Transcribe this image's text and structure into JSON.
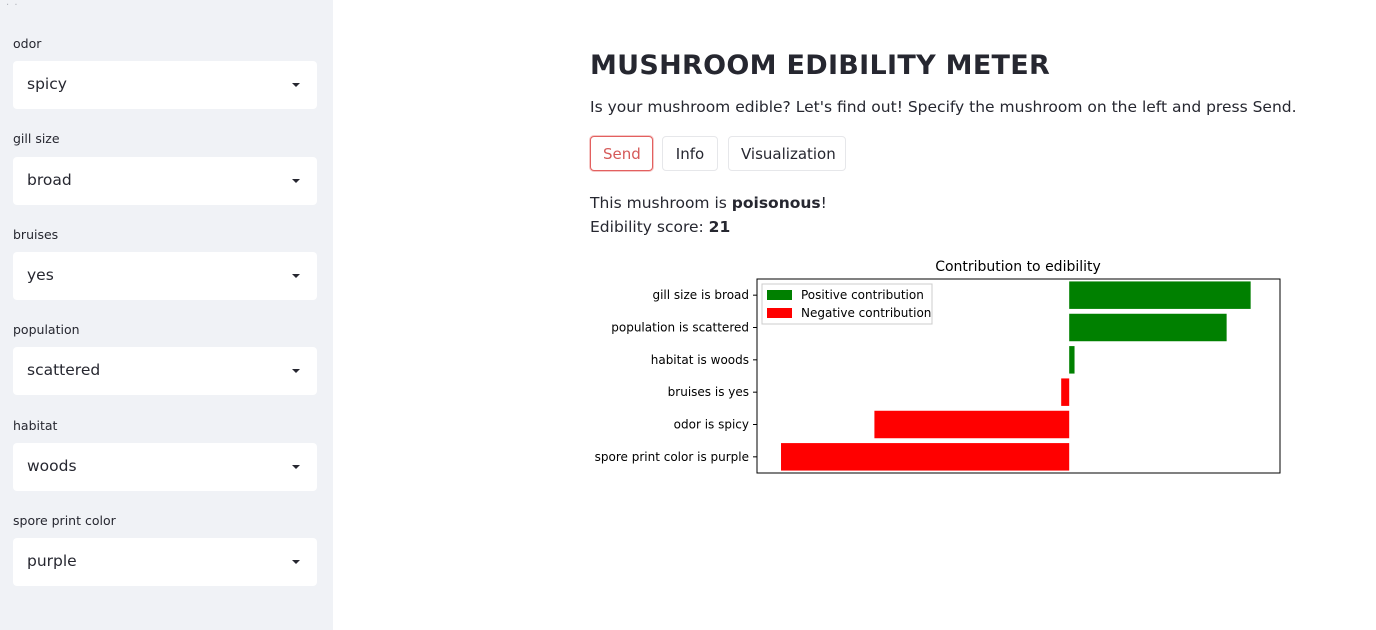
{
  "sidebar": {
    "fields": [
      {
        "label": "odor",
        "value": "spicy"
      },
      {
        "label": "gill size",
        "value": "broad"
      },
      {
        "label": "bruises",
        "value": "yes"
      },
      {
        "label": "population",
        "value": "scattered"
      },
      {
        "label": "habitat",
        "value": "woods"
      },
      {
        "label": "spore print color",
        "value": "purple"
      }
    ]
  },
  "main": {
    "title": "MUSHROOM EDIBILITY METER",
    "subtitle": "Is your mushroom edible? Let's find out! Specify the mushroom on the left and press Send.",
    "buttons": {
      "send": "Send",
      "info": "Info",
      "visualization": "Visualization"
    },
    "result": {
      "prefix": "This mushroom is ",
      "verdict": "poisonous",
      "suffix": "!",
      "score_label": "Edibility score: ",
      "score": "21"
    }
  },
  "chart_data": {
    "type": "bar",
    "orientation": "horizontal",
    "title": "Contribution to edibility",
    "categories": [
      "gill size is broad",
      "population is scattered",
      "habitat is woods",
      "bruises is yes",
      "odor is spicy",
      "spore print color is purple"
    ],
    "values": [
      0.68,
      0.59,
      0.02,
      -0.03,
      -0.73,
      -1.08
    ],
    "xlim": [
      -1.17,
      0.79
    ],
    "legend": {
      "placement": "top-left",
      "entries": [
        {
          "label": "Positive contribution",
          "color": "#008000"
        },
        {
          "label": "Negative contribution",
          "color": "#ff0000"
        }
      ]
    },
    "colors": {
      "positive": "#008000",
      "negative": "#ff0000"
    },
    "xlabel": "",
    "ylabel": "",
    "show_x_ticks": false,
    "grid": false
  }
}
